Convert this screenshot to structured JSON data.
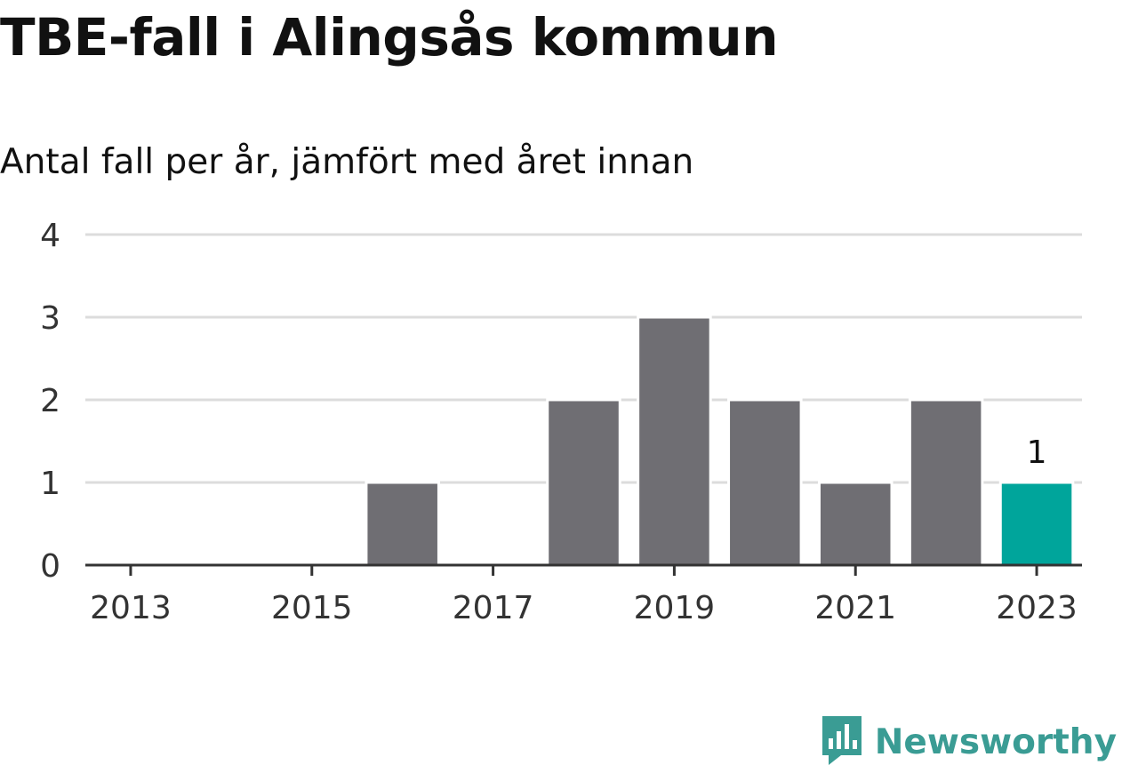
{
  "header": {
    "title": "TBE-fall i Alingsås kommun",
    "subtitle": "Antal fall per år, jämfört med året innan"
  },
  "chart_data": {
    "type": "bar",
    "categories": [
      "2013",
      "2014",
      "2015",
      "2016",
      "2017",
      "2018",
      "2019",
      "2020",
      "2021",
      "2022",
      "2023"
    ],
    "values": [
      0,
      0,
      0,
      1,
      0,
      2,
      3,
      2,
      1,
      2,
      1
    ],
    "x_tick_labels": [
      "2013",
      "2015",
      "2017",
      "2019",
      "2021",
      "2023"
    ],
    "y_ticks": [
      0,
      1,
      2,
      3,
      4
    ],
    "ylim": [
      0,
      4
    ],
    "highlight_index": 10,
    "highlight_label": "1",
    "grid": true,
    "colors": {
      "bar": "#6f6e73",
      "highlight": "#00a59b",
      "grid": "#dcdcdc",
      "axis": "#333333"
    }
  },
  "branding": {
    "logo_text": "Newsworthy",
    "logo_icon": "newsworthy-chart-bubble-icon",
    "logo_color": "#3a9c94"
  }
}
